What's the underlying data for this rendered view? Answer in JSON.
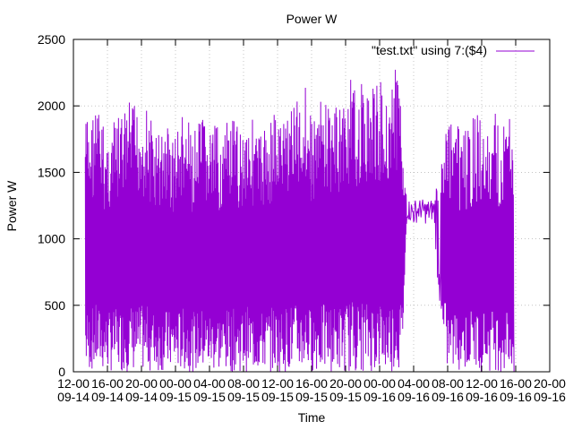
{
  "chart_data": {
    "type": "line",
    "title": "Power W",
    "xlabel": "Time",
    "ylabel": "Power W",
    "ylim": [
      0,
      2500
    ],
    "yticks": [
      0,
      500,
      1000,
      1500,
      2000,
      2500
    ],
    "xticks": [
      [
        "12-00",
        "09-14"
      ],
      [
        "16-00",
        "09-14"
      ],
      [
        "20-00",
        "09-14"
      ],
      [
        "00-00",
        "09-15"
      ],
      [
        "04-00",
        "09-15"
      ],
      [
        "08-00",
        "09-15"
      ],
      [
        "12-00",
        "09-15"
      ],
      [
        "16-00",
        "09-15"
      ],
      [
        "20-00",
        "09-15"
      ],
      [
        "00-00",
        "09-16"
      ],
      [
        "04-00",
        "09-16"
      ],
      [
        "08-00",
        "09-16"
      ],
      [
        "12-00",
        "09-16"
      ],
      [
        "16-00",
        "09-16"
      ],
      [
        "20-00",
        "09-16"
      ]
    ],
    "grid": true,
    "legend_position": "top-right",
    "series": [
      {
        "name": "\"test.txt\" using 7:($4)",
        "color": "#9400d3",
        "x_unit": "hours since the first x tick label (12-00 09-14)",
        "envelope": [
          [
            1.4,
            0,
            1950
          ],
          [
            2.0,
            0,
            1900
          ],
          [
            2.6,
            0,
            2050
          ],
          [
            3.2,
            0,
            1950
          ],
          [
            3.8,
            0,
            1800
          ],
          [
            4.4,
            0,
            1850
          ],
          [
            5.0,
            0,
            1900
          ],
          [
            5.6,
            0,
            1950
          ],
          [
            6.2,
            0,
            2000
          ],
          [
            6.8,
            0,
            2050
          ],
          [
            7.4,
            0,
            2000
          ],
          [
            8.0,
            0,
            2000
          ],
          [
            8.6,
            0,
            2000
          ],
          [
            9.2,
            0,
            1900
          ],
          [
            9.8,
            0,
            1800
          ],
          [
            10.4,
            0,
            1850
          ],
          [
            11.0,
            0,
            1900
          ],
          [
            11.6,
            0,
            1800
          ],
          [
            12.2,
            0,
            1850
          ],
          [
            12.8,
            0,
            1950
          ],
          [
            13.4,
            0,
            1900
          ],
          [
            14.0,
            0,
            1800
          ],
          [
            14.6,
            0,
            1850
          ],
          [
            15.2,
            0,
            1950
          ],
          [
            15.8,
            0,
            1850
          ],
          [
            16.4,
            0,
            1850
          ],
          [
            17.0,
            0,
            1850
          ],
          [
            17.6,
            0,
            1800
          ],
          [
            18.2,
            0,
            1900
          ],
          [
            18.8,
            0,
            1900
          ],
          [
            19.4,
            0,
            1850
          ],
          [
            20.0,
            0,
            1900
          ],
          [
            20.6,
            0,
            2000
          ],
          [
            21.2,
            0,
            1900
          ],
          [
            21.8,
            0,
            1800
          ],
          [
            22.4,
            0,
            1850
          ],
          [
            23.0,
            0,
            1900
          ],
          [
            23.6,
            0,
            2000
          ],
          [
            24.2,
            0,
            1900
          ],
          [
            24.8,
            0,
            1950
          ],
          [
            25.4,
            0,
            2100
          ],
          [
            26.0,
            0,
            2050
          ],
          [
            26.6,
            0,
            2050
          ],
          [
            27.2,
            0,
            2250
          ],
          [
            27.8,
            0,
            1950
          ],
          [
            28.4,
            0,
            1950
          ],
          [
            29.0,
            0,
            2050
          ],
          [
            29.6,
            0,
            2050
          ],
          [
            30.2,
            0,
            2050
          ],
          [
            30.8,
            0,
            2000
          ],
          [
            31.4,
            0,
            2050
          ],
          [
            32.0,
            0,
            2100
          ],
          [
            32.6,
            0,
            2200
          ],
          [
            33.2,
            0,
            2100
          ],
          [
            33.8,
            0,
            2200
          ],
          [
            34.4,
            0,
            2100
          ],
          [
            35.0,
            0,
            2200
          ],
          [
            35.6,
            0,
            2150
          ],
          [
            36.2,
            0,
            2200
          ],
          [
            36.8,
            0,
            2100
          ],
          [
            37.4,
            0,
            2250
          ],
          [
            38.0,
            0,
            2300
          ],
          [
            38.6,
            0,
            2100
          ],
          [
            39.2,
            1150,
            1300
          ],
          [
            40.0,
            1100,
            1300
          ],
          [
            40.8,
            1150,
            1300
          ],
          [
            41.6,
            1100,
            1300
          ],
          [
            42.4,
            1150,
            1300
          ],
          [
            43.2,
            200,
            1950
          ],
          [
            44.0,
            0,
            1900
          ],
          [
            44.8,
            0,
            1850
          ],
          [
            45.6,
            0,
            1850
          ],
          [
            46.4,
            0,
            1850
          ],
          [
            47.2,
            0,
            1950
          ],
          [
            48.0,
            0,
            1900
          ],
          [
            48.8,
            0,
            1800
          ],
          [
            49.6,
            0,
            1950
          ],
          [
            50.4,
            0,
            1850
          ],
          [
            51.2,
            0,
            2000
          ],
          [
            51.8,
            0,
            1850
          ]
        ]
      }
    ]
  }
}
